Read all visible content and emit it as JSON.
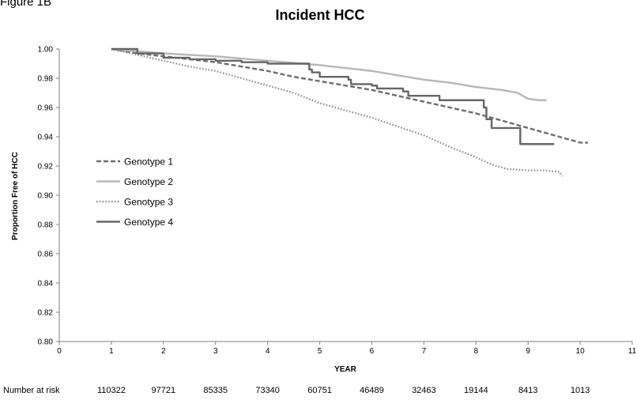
{
  "figure_label": "Figure 1B",
  "chart_data": {
    "type": "line",
    "title": "Incident HCC",
    "xlabel": "YEAR",
    "ylabel": "Proportion Free of HCC",
    "xlim": [
      0,
      11
    ],
    "ylim": [
      0.8,
      1.0
    ],
    "x_ticks": [
      "0",
      "1",
      "2",
      "3",
      "4",
      "5",
      "6",
      "7",
      "8",
      "9",
      "10",
      "11"
    ],
    "y_ticks": [
      "0.80",
      "0.82",
      "0.84",
      "0.86",
      "0.88",
      "0.90",
      "0.92",
      "0.94",
      "0.96",
      "0.98",
      "1.00"
    ],
    "grid": false,
    "legend_position": "left",
    "series": [
      {
        "name": "Genotype 1",
        "style": "dashed",
        "color": "#6e6e6e",
        "points": [
          [
            1.0,
            1.0
          ],
          [
            1.5,
            0.997
          ],
          [
            2.0,
            0.995
          ],
          [
            2.5,
            0.993
          ],
          [
            3.0,
            0.991
          ],
          [
            3.5,
            0.988
          ],
          [
            4.0,
            0.985
          ],
          [
            4.5,
            0.981
          ],
          [
            5.0,
            0.978
          ],
          [
            5.5,
            0.975
          ],
          [
            6.0,
            0.972
          ],
          [
            6.5,
            0.968
          ],
          [
            7.0,
            0.964
          ],
          [
            7.5,
            0.96
          ],
          [
            8.0,
            0.956
          ],
          [
            8.5,
            0.951
          ],
          [
            9.0,
            0.946
          ],
          [
            9.5,
            0.941
          ],
          [
            9.8,
            0.938
          ],
          [
            10.0,
            0.936
          ],
          [
            10.15,
            0.936
          ]
        ]
      },
      {
        "name": "Genotype 2",
        "style": "solid",
        "color": "#b8b8b8",
        "points": [
          [
            1.0,
            1.0
          ],
          [
            2.0,
            0.997
          ],
          [
            3.0,
            0.995
          ],
          [
            4.0,
            0.992
          ],
          [
            5.0,
            0.989
          ],
          [
            5.5,
            0.987
          ],
          [
            6.0,
            0.985
          ],
          [
            6.5,
            0.982
          ],
          [
            7.0,
            0.979
          ],
          [
            7.5,
            0.977
          ],
          [
            8.0,
            0.974
          ],
          [
            8.5,
            0.972
          ],
          [
            8.8,
            0.97
          ],
          [
            9.0,
            0.966
          ],
          [
            9.2,
            0.965
          ],
          [
            9.35,
            0.965
          ]
        ]
      },
      {
        "name": "Genotype 3",
        "style": "dotted",
        "color": "#8a8a8a",
        "points": [
          [
            1.0,
            1.0
          ],
          [
            1.5,
            0.996
          ],
          [
            2.0,
            0.992
          ],
          [
            2.5,
            0.988
          ],
          [
            3.0,
            0.985
          ],
          [
            3.5,
            0.98
          ],
          [
            4.0,
            0.975
          ],
          [
            4.5,
            0.97
          ],
          [
            5.0,
            0.963
          ],
          [
            5.5,
            0.958
          ],
          [
            6.0,
            0.953
          ],
          [
            6.5,
            0.947
          ],
          [
            7.0,
            0.941
          ],
          [
            7.5,
            0.933
          ],
          [
            8.0,
            0.926
          ],
          [
            8.3,
            0.921
          ],
          [
            8.6,
            0.918
          ],
          [
            9.0,
            0.917
          ],
          [
            9.3,
            0.917
          ],
          [
            9.6,
            0.916
          ],
          [
            9.65,
            0.913
          ]
        ]
      },
      {
        "name": "Genotype 4",
        "style": "step",
        "color": "#666666",
        "points": [
          [
            1.0,
            1.0
          ],
          [
            1.5,
            0.997
          ],
          [
            2.0,
            0.994
          ],
          [
            2.5,
            0.993
          ],
          [
            3.0,
            0.992
          ],
          [
            3.5,
            0.991
          ],
          [
            4.0,
            0.99
          ],
          [
            4.6,
            0.99
          ],
          [
            4.8,
            0.986
          ],
          [
            4.85,
            0.984
          ],
          [
            5.0,
            0.981
          ],
          [
            5.55,
            0.979
          ],
          [
            5.6,
            0.976
          ],
          [
            6.0,
            0.975
          ],
          [
            6.1,
            0.973
          ],
          [
            6.6,
            0.971
          ],
          [
            6.7,
            0.968
          ],
          [
            7.3,
            0.965
          ],
          [
            8.15,
            0.96
          ],
          [
            8.2,
            0.952
          ],
          [
            8.3,
            0.946
          ],
          [
            8.85,
            0.935
          ],
          [
            9.5,
            0.935
          ]
        ]
      }
    ],
    "risk_table": {
      "label": "Number at risk",
      "values": [
        "110322",
        "97721",
        "85335",
        "73340",
        "60751",
        "46489",
        "32463",
        "19144",
        "8413",
        "1013"
      ],
      "x": [
        1,
        2,
        3,
        4,
        5,
        6,
        7,
        8,
        9,
        10
      ]
    }
  }
}
